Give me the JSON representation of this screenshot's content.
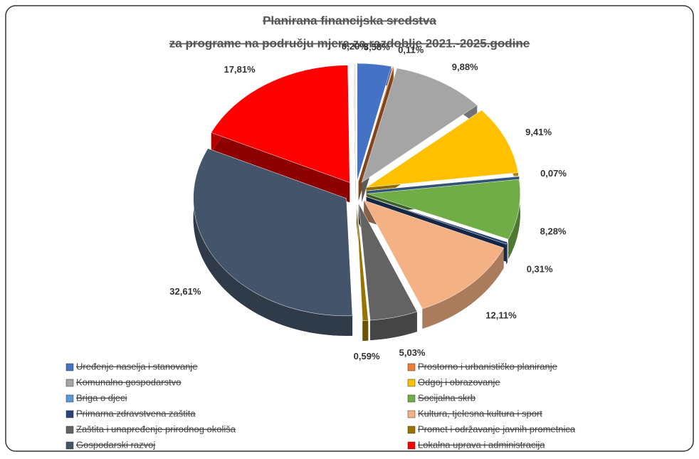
{
  "chart_data": {
    "type": "pie",
    "title": [
      "Planirana financijska sredstva",
      "za programe na području mjera za razdoblje 2021.-2025.godine"
    ],
    "categories": [
      "Uređenje naselja i stanovanje",
      "Prostorno i urbanističko planiranje",
      "Komunalno gospodarstvo",
      "Odgoj i obrazovanje",
      "Briga o djeci",
      "Socijalna skrb",
      "Primarna zdravstvena zaštita",
      "Kultura, tjelesna kultura i sport",
      "Zaštita i unapređenje prirodnog okoliša",
      "Promet i održavanje javnih prometnica",
      "Gospodarski razvoj",
      "Lokalna uprava i administracija",
      null
    ],
    "values": [
      3.58,
      0.11,
      9.88,
      9.41,
      0.07,
      8.28,
      0.31,
      12.11,
      5.03,
      0.59,
      32.61,
      17.81,
      0.2
    ],
    "value_labels": [
      "3,58%",
      "0,11%",
      "9,88%",
      "9,41%",
      "0,07%",
      "8,28%",
      "0,31%",
      "12,11%",
      "5,03%",
      "0,59%",
      "32,61%",
      "17,81%",
      "0,20%"
    ],
    "colors": [
      "#4472c4",
      "#ed7d31",
      "#a5a5a5",
      "#ffc000",
      "#5b9bd5",
      "#70ad47",
      "#264478",
      "#f4b183",
      "#636363",
      "#997300",
      "#44546a",
      "#ff0000",
      "#e7e6e6"
    ],
    "legend": "bottom"
  }
}
